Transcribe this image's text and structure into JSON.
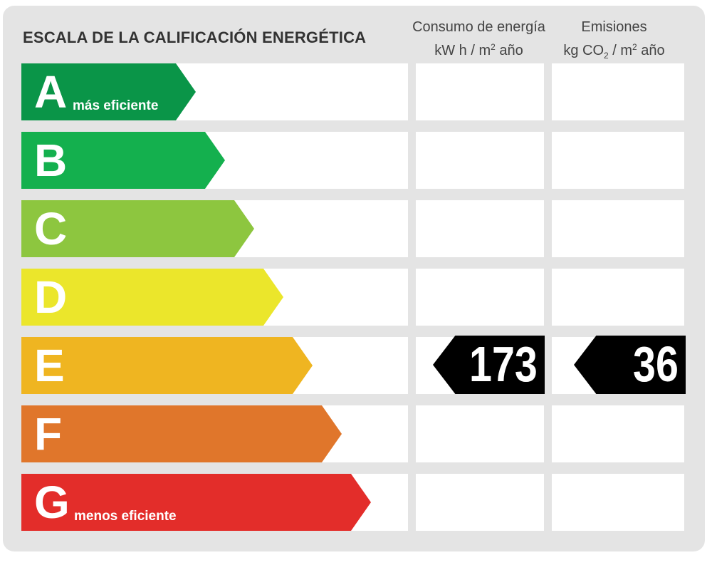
{
  "title": "ESCALA DE LA CALIFICACIÓN ENERGÉTICA",
  "columns": {
    "consumption": {
      "line1": "Consumo de energía",
      "unit_pre": "kW h  / m",
      "unit_sup": "2",
      "unit_post": " año"
    },
    "emissions": {
      "line1": "Emisiones",
      "unit_pre": "kg CO",
      "unit_sub": "2",
      "unit_mid": " / m",
      "unit_sup": "2",
      "unit_post": " año"
    }
  },
  "chart_data": {
    "type": "energy-rating",
    "title": "ESCALA DE LA CALIFICACIÓN ENERGÉTICA",
    "classes": [
      {
        "letter": "A",
        "note": "más eficiente",
        "color": "#0a9548"
      },
      {
        "letter": "B",
        "note": "",
        "color": "#14b04e"
      },
      {
        "letter": "C",
        "note": "",
        "color": "#8dc63f"
      },
      {
        "letter": "D",
        "note": "",
        "color": "#ebe62b"
      },
      {
        "letter": "E",
        "note": "",
        "color": "#efb521"
      },
      {
        "letter": "F",
        "note": "",
        "color": "#e0762b"
      },
      {
        "letter": "G",
        "note": "menos eficiente",
        "color": "#e32d2a"
      }
    ],
    "rating": {
      "consumption": {
        "class": "E",
        "value": 173,
        "unit": "kW h / m² año"
      },
      "emissions": {
        "class": "E",
        "value": 36,
        "unit": "kg CO₂ / m² año"
      }
    }
  }
}
